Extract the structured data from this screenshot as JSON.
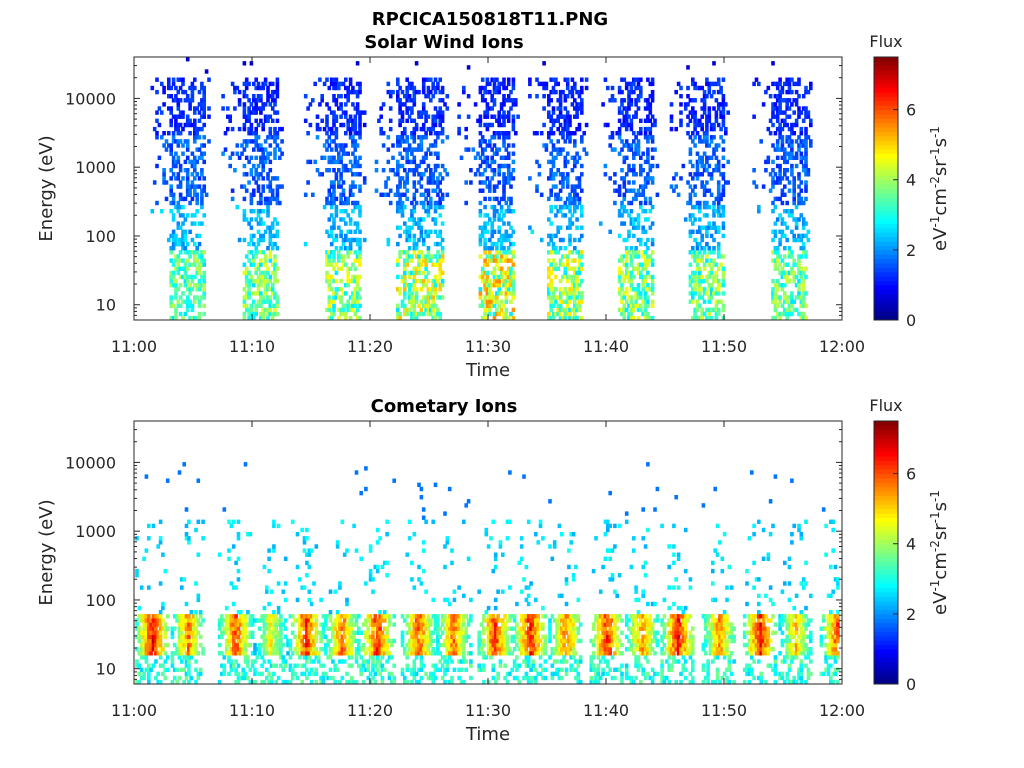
{
  "figure": {
    "title": "RPCICA150818T11.PNG"
  },
  "chart_data": [
    {
      "type": "heatmap",
      "title": "Solar Wind Ions",
      "xlabel": "Time",
      "ylabel": "Energy (eV)",
      "y_scale": "log",
      "xlim": [
        "11:00",
        "12:00"
      ],
      "ylim": [
        6,
        40000
      ],
      "x_ticks": [
        "11:00",
        "11:10",
        "11:20",
        "11:30",
        "11:40",
        "11:50",
        "12:00"
      ],
      "y_ticks": [
        "10",
        "100",
        "1000",
        "10000"
      ],
      "grid": false,
      "colorbar": {
        "title": "Flux",
        "label": "eV-1cm-2sr-1s-1",
        "range": [
          0,
          7.5
        ],
        "ticks": [
          "0",
          "2",
          "4",
          "6"
        ],
        "colormap": "jet"
      },
      "bursts": [
        {
          "start": "11:03",
          "end": "11:06",
          "peak_flux": 4.2
        },
        {
          "start": "11:09",
          "end": "11:12",
          "peak_flux": 4.5
        },
        {
          "start": "11:16",
          "end": "11:19",
          "peak_flux": 4.8
        },
        {
          "start": "11:22",
          "end": "11:26",
          "peak_flux": 5.2
        },
        {
          "start": "11:29",
          "end": "11:32",
          "peak_flux": 5.6
        },
        {
          "start": "11:35",
          "end": "11:38",
          "peak_flux": 5.0
        },
        {
          "start": "11:41",
          "end": "11:44",
          "peak_flux": 4.8
        },
        {
          "start": "11:47",
          "end": "11:50",
          "peak_flux": 4.6
        },
        {
          "start": "11:54",
          "end": "11:57",
          "peak_flux": 4.4
        }
      ]
    },
    {
      "type": "heatmap",
      "title": "Cometary Ions",
      "xlabel": "Time",
      "ylabel": "Energy (eV)",
      "y_scale": "log",
      "xlim": [
        "11:00",
        "12:00"
      ],
      "ylim": [
        6,
        40000
      ],
      "x_ticks": [
        "11:00",
        "11:10",
        "11:20",
        "11:30",
        "11:40",
        "11:50",
        "12:00"
      ],
      "y_ticks": [
        "10",
        "100",
        "1000",
        "10000"
      ],
      "grid": false,
      "colorbar": {
        "title": "Flux",
        "label": "eV-1cm-2sr-1s-1",
        "range": [
          0,
          7.5
        ],
        "ticks": [
          "0",
          "2",
          "4",
          "6"
        ],
        "colormap": "jet"
      },
      "energy_band_eV": [
        15,
        60
      ],
      "blobs": [
        {
          "time": "11:01.5",
          "flux": 7.2
        },
        {
          "time": "11:04.5",
          "flux": 6.2
        },
        {
          "time": "11:08.5",
          "flux": 6.6
        },
        {
          "time": "11:11.5",
          "flux": 5.2
        },
        {
          "time": "11:14.5",
          "flux": 6.9
        },
        {
          "time": "11:17.5",
          "flux": 6.4
        },
        {
          "time": "11:20.5",
          "flux": 6.9
        },
        {
          "time": "11:24",
          "flux": 6.6
        },
        {
          "time": "11:27",
          "flux": 6.4
        },
        {
          "time": "11:30.5",
          "flux": 6.9
        },
        {
          "time": "11:33.5",
          "flux": 7.0
        },
        {
          "time": "11:36.5",
          "flux": 6.3
        },
        {
          "time": "11:40",
          "flux": 6.9
        },
        {
          "time": "11:43",
          "flux": 6.2
        },
        {
          "time": "11:46",
          "flux": 7.0
        },
        {
          "time": "11:49.5",
          "flux": 6.1
        },
        {
          "time": "11:53",
          "flux": 7.1
        },
        {
          "time": "11:56",
          "flux": 5.6
        },
        {
          "time": "11:59.5",
          "flux": 6.6
        }
      ]
    }
  ],
  "colors": {
    "axis": "#262626",
    "background": "#ffffff"
  }
}
